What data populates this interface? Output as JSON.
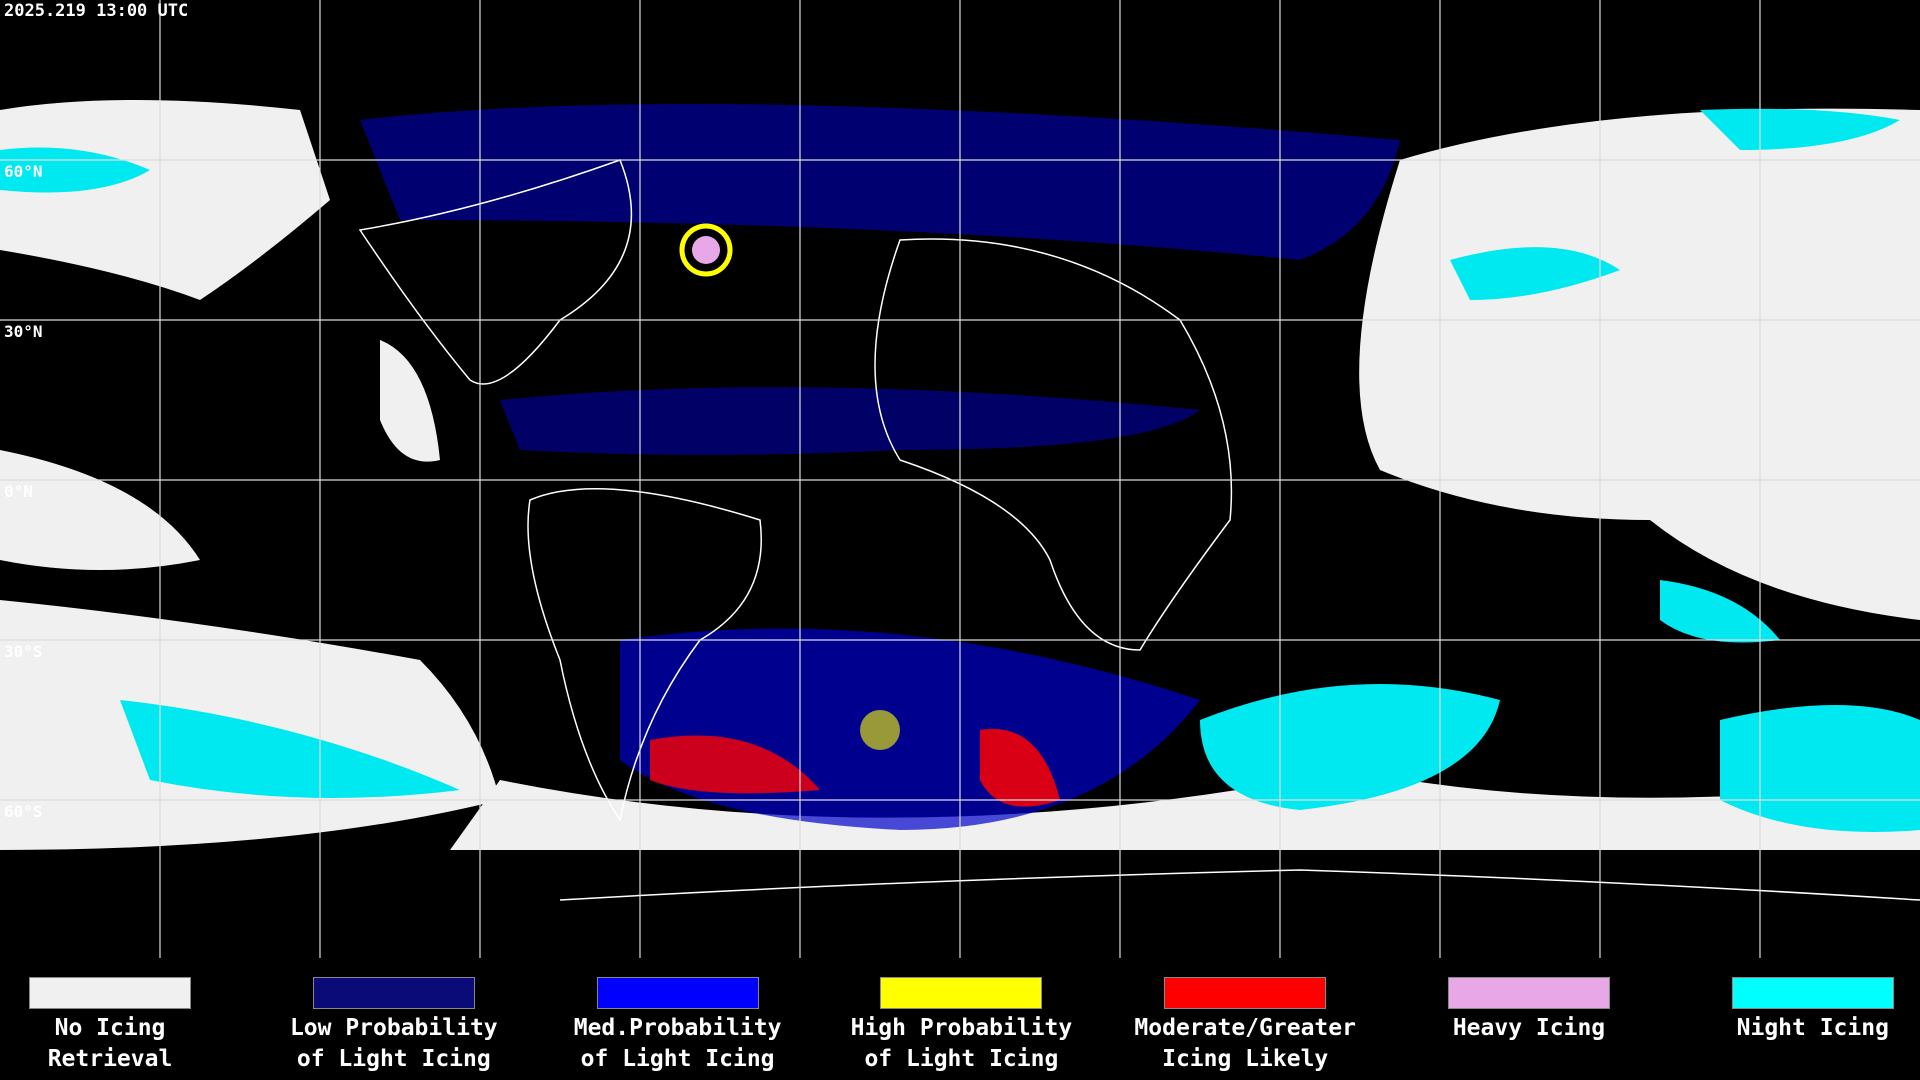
{
  "header": {
    "timestamp": "2025.219 13:00 UTC"
  },
  "latitude_labels": [
    "60°N",
    "30°N",
    "0°N",
    "30°S",
    "60°S"
  ],
  "legend": [
    {
      "color": "#f0f0f0",
      "lines": [
        "No Icing",
        "Retrieval"
      ]
    },
    {
      "color": "#0a0a78",
      "lines": [
        "Low Probability",
        "of Light Icing"
      ]
    },
    {
      "color": "#0000ff",
      "lines": [
        "Med.Probability",
        "of Light Icing"
      ]
    },
    {
      "color": "#ffff00",
      "lines": [
        "High Probability",
        "of Light Icing"
      ]
    },
    {
      "color": "#ff0000",
      "lines": [
        "Moderate/Greater",
        "Icing Likely"
      ]
    },
    {
      "color": "#e8a8e8",
      "lines": [
        "Heavy Icing"
      ]
    },
    {
      "color": "#00ffff",
      "lines": [
        "Night Icing"
      ]
    }
  ]
}
